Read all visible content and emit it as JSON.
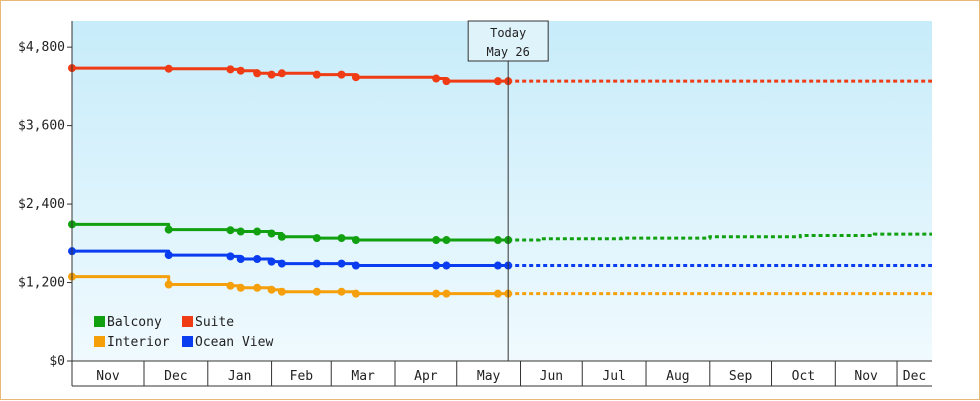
{
  "chart_data": {
    "type": "line",
    "y_axis": {
      "ticks": [
        0,
        1200,
        2400,
        3600,
        4800
      ],
      "tick_labels": [
        "$0",
        "$1,200",
        "$2,400",
        "$3,600",
        "$4,800"
      ],
      "ylim": [
        0,
        5200
      ]
    },
    "x_axis": {
      "months": [
        "Nov",
        "Dec",
        "Jan",
        "Feb",
        "Mar",
        "Apr",
        "May",
        "Jun",
        "Jul",
        "Aug",
        "Sep",
        "Oct",
        "Nov",
        "Dec"
      ],
      "month_starts": [
        "2023-11-01",
        "2023-12-01",
        "2024-01-01",
        "2024-02-01",
        "2024-03-01",
        "2024-04-01",
        "2024-05-01",
        "2024-06-01",
        "2024-07-01",
        "2024-08-01",
        "2024-09-01",
        "2024-10-01",
        "2024-11-01",
        "2024-12-01"
      ],
      "xlim": [
        "2023-10-27",
        "2024-12-18"
      ]
    },
    "today": {
      "label": "Today",
      "date_label": "May 26",
      "date": "2024-05-26"
    },
    "series": [
      {
        "name": "Suite",
        "color": "#f03c14",
        "historical": [
          [
            "2023-10-27",
            4480
          ],
          [
            "2023-12-13",
            4480
          ],
          [
            "2023-12-13",
            4470
          ],
          [
            "2024-01-12",
            4470
          ],
          [
            "2024-01-12",
            4460
          ],
          [
            "2024-01-17",
            4460
          ],
          [
            "2024-01-17",
            4440
          ],
          [
            "2024-01-25",
            4440
          ],
          [
            "2024-01-25",
            4400
          ],
          [
            "2024-02-01",
            4400
          ],
          [
            "2024-02-01",
            4380
          ],
          [
            "2024-02-06",
            4380
          ],
          [
            "2024-02-06",
            4400
          ],
          [
            "2024-02-23",
            4400
          ],
          [
            "2024-02-23",
            4380
          ],
          [
            "2024-03-13",
            4380
          ],
          [
            "2024-03-13",
            4340
          ],
          [
            "2024-04-21",
            4340
          ],
          [
            "2024-04-21",
            4320
          ],
          [
            "2024-04-26",
            4320
          ],
          [
            "2024-04-26",
            4280
          ],
          [
            "2024-05-26",
            4280
          ]
        ],
        "projected": [
          [
            "2024-05-26",
            4280
          ],
          [
            "2024-12-18",
            4280
          ]
        ]
      },
      {
        "name": "Balcony",
        "color": "#10a010",
        "historical": [
          [
            "2023-10-27",
            2090
          ],
          [
            "2023-12-13",
            2090
          ],
          [
            "2023-12-13",
            2010
          ],
          [
            "2024-01-12",
            2010
          ],
          [
            "2024-01-12",
            2000
          ],
          [
            "2024-01-17",
            2000
          ],
          [
            "2024-01-17",
            1980
          ],
          [
            "2024-02-01",
            1980
          ],
          [
            "2024-02-01",
            1950
          ],
          [
            "2024-02-06",
            1950
          ],
          [
            "2024-02-06",
            1900
          ],
          [
            "2024-02-23",
            1900
          ],
          [
            "2024-02-23",
            1880
          ],
          [
            "2024-03-13",
            1880
          ],
          [
            "2024-03-13",
            1850
          ],
          [
            "2024-05-26",
            1850
          ]
        ],
        "projected": [
          [
            "2024-05-26",
            1850
          ],
          [
            "2024-06-10",
            1850
          ],
          [
            "2024-06-10",
            1870
          ],
          [
            "2024-07-20",
            1870
          ],
          [
            "2024-07-20",
            1880
          ],
          [
            "2024-09-01",
            1880
          ],
          [
            "2024-09-01",
            1900
          ],
          [
            "2024-10-15",
            1900
          ],
          [
            "2024-10-15",
            1920
          ],
          [
            "2024-11-20",
            1920
          ],
          [
            "2024-11-20",
            1940
          ],
          [
            "2024-12-18",
            1940
          ]
        ]
      },
      {
        "name": "Ocean View",
        "color": "#0a3cf0",
        "historical": [
          [
            "2023-10-27",
            1680
          ],
          [
            "2023-12-13",
            1680
          ],
          [
            "2023-12-13",
            1620
          ],
          [
            "2024-01-12",
            1620
          ],
          [
            "2024-01-12",
            1600
          ],
          [
            "2024-01-17",
            1600
          ],
          [
            "2024-01-17",
            1560
          ],
          [
            "2024-02-01",
            1560
          ],
          [
            "2024-02-01",
            1520
          ],
          [
            "2024-02-06",
            1520
          ],
          [
            "2024-02-06",
            1490
          ],
          [
            "2024-03-13",
            1490
          ],
          [
            "2024-03-13",
            1460
          ],
          [
            "2024-05-26",
            1460
          ]
        ],
        "projected": [
          [
            "2024-05-26",
            1460
          ],
          [
            "2024-12-18",
            1460
          ]
        ]
      },
      {
        "name": "Interior",
        "color": "#f5a00a",
        "historical": [
          [
            "2023-10-27",
            1290
          ],
          [
            "2023-12-13",
            1290
          ],
          [
            "2023-12-13",
            1170
          ],
          [
            "2024-01-12",
            1170
          ],
          [
            "2024-01-12",
            1150
          ],
          [
            "2024-01-17",
            1150
          ],
          [
            "2024-01-17",
            1120
          ],
          [
            "2024-02-01",
            1120
          ],
          [
            "2024-02-01",
            1090
          ],
          [
            "2024-02-06",
            1090
          ],
          [
            "2024-02-06",
            1060
          ],
          [
            "2024-03-13",
            1060
          ],
          [
            "2024-03-13",
            1030
          ],
          [
            "2024-05-26",
            1030
          ]
        ],
        "projected": [
          [
            "2024-05-26",
            1030
          ],
          [
            "2024-12-18",
            1030
          ]
        ]
      }
    ],
    "price_change_dates": [
      "2023-10-27",
      "2023-12-13",
      "2024-01-12",
      "2024-01-17",
      "2024-01-25",
      "2024-02-01",
      "2024-02-06",
      "2024-02-23",
      "2024-03-06",
      "2024-03-13",
      "2024-04-21",
      "2024-04-26",
      "2024-05-21",
      "2024-05-26"
    ],
    "legend": {
      "placement": "bottom-left",
      "rows": [
        [
          {
            "label": "Balcony",
            "color": "#10a010"
          },
          {
            "label": "Suite",
            "color": "#f03c14"
          }
        ],
        [
          {
            "label": "Interior",
            "color": "#f5a00a"
          },
          {
            "label": "Ocean View",
            "color": "#0a3cf0"
          }
        ]
      ]
    },
    "grid": false
  },
  "colors": {
    "frame_border": "#e8b878",
    "plot_top": "#c7ecfa",
    "plot_bottom": "#f0fafe",
    "axis": "#333333"
  }
}
